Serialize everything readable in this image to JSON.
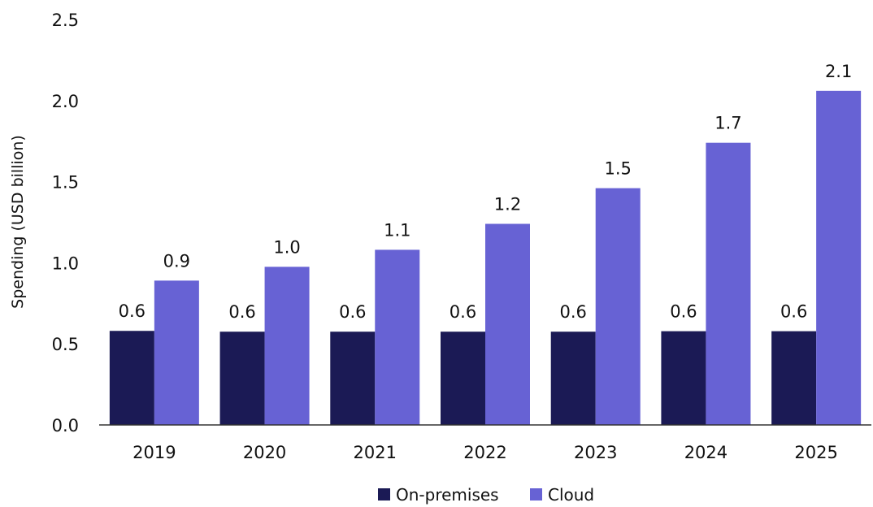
{
  "chart_data": {
    "type": "bar",
    "title": "",
    "xlabel": "",
    "ylabel": "Spending (USD billion)",
    "ylim": [
      0,
      2.5
    ],
    "yticks": [
      "0.0",
      "0.5",
      "1.0",
      "1.5",
      "2.0",
      "2.5"
    ],
    "grid": false,
    "legend_position": "bottom",
    "categories": [
      "2019",
      "2020",
      "2021",
      "2022",
      "2023",
      "2024",
      "2025"
    ],
    "series": [
      {
        "name": "On-premises",
        "color": "#1b1a55",
        "values": [
          0.58,
          0.575,
          0.575,
          0.575,
          0.575,
          0.578,
          0.578
        ],
        "labels": [
          "0.6",
          "0.6",
          "0.6",
          "0.6",
          "0.6",
          "0.6",
          "0.6"
        ]
      },
      {
        "name": "Cloud",
        "color": "#6762d4",
        "values": [
          0.89,
          0.975,
          1.08,
          1.24,
          1.46,
          1.74,
          2.06
        ],
        "labels": [
          "0.9",
          "1.0",
          "1.1",
          "1.2",
          "1.5",
          "1.7",
          "2.1"
        ]
      }
    ]
  }
}
